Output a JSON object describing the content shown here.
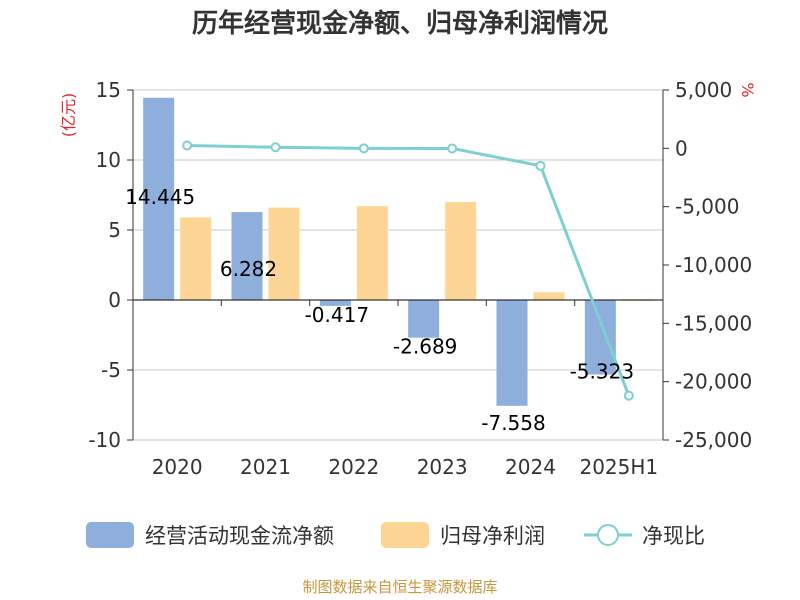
{
  "chart_data": {
    "type": "bar",
    "title": "历年经营现金净额、归母净利润情况",
    "categories": [
      "2020",
      "2021",
      "2022",
      "2023",
      "2024",
      "2025H1"
    ],
    "y_left_unit": "(亿元)",
    "y_right_unit": "%",
    "y_left_range": [
      -10,
      15
    ],
    "y_left_ticks": [
      "15",
      "10",
      "5",
      "0",
      "-5",
      "-10"
    ],
    "y_right_range": [
      -25000,
      5000
    ],
    "y_right_ticks": [
      "5,000",
      "0",
      "-5,000",
      "-10,000",
      "-15,000",
      "-20,000",
      "-25,000"
    ],
    "grid": true,
    "legend_position": "bottom",
    "series": [
      {
        "name": "经营活动现金流净额",
        "type": "bar",
        "axis": "left",
        "color": "#8eaedc",
        "values": [
          14.445,
          6.282,
          -0.417,
          -2.689,
          -7.558,
          -5.323
        ],
        "labels": [
          "14.445",
          "6.282",
          "-0.417",
          "-2.689",
          "-7.558",
          "-5.323"
        ]
      },
      {
        "name": "归母净利润",
        "type": "bar",
        "axis": "left",
        "color": "#fdd696",
        "values": [
          5.9,
          6.6,
          6.7,
          7.0,
          0.55,
          -0.05
        ]
      },
      {
        "name": "净现比",
        "type": "line",
        "axis": "right",
        "color": "#7dcfd1",
        "values": [
          240,
          95,
          0,
          -10,
          -1500,
          -21200
        ]
      }
    ]
  },
  "source": "制图数据来自恒生聚源数据库"
}
